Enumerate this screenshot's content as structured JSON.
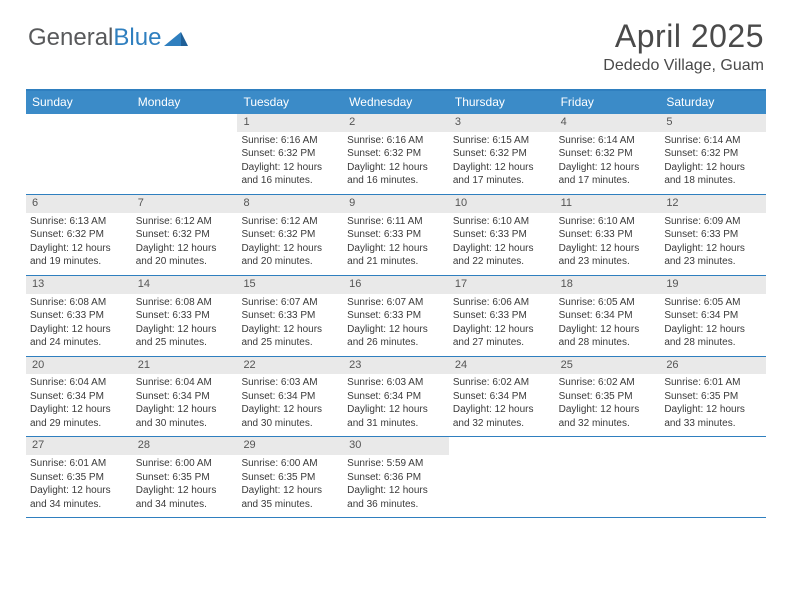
{
  "brand": {
    "word1": "General",
    "word2": "Blue"
  },
  "header": {
    "title": "April 2025",
    "location": "Dededo Village, Guam"
  },
  "colors": {
    "header_bar": "#3b8bc8",
    "header_rule": "#2f7fbf",
    "week_divider": "#2f7fbf",
    "daynum_bg": "#e9e9e9",
    "text": "#3a3a3a",
    "brand_grey": "#58595b",
    "brand_blue": "#2f7fbf"
  },
  "day_headers": [
    "Sunday",
    "Monday",
    "Tuesday",
    "Wednesday",
    "Thursday",
    "Friday",
    "Saturday"
  ],
  "weeks": [
    [
      null,
      null,
      {
        "n": "1",
        "sr": "6:16 AM",
        "ss": "6:32 PM",
        "dl": "12 hours and 16 minutes."
      },
      {
        "n": "2",
        "sr": "6:16 AM",
        "ss": "6:32 PM",
        "dl": "12 hours and 16 minutes."
      },
      {
        "n": "3",
        "sr": "6:15 AM",
        "ss": "6:32 PM",
        "dl": "12 hours and 17 minutes."
      },
      {
        "n": "4",
        "sr": "6:14 AM",
        "ss": "6:32 PM",
        "dl": "12 hours and 17 minutes."
      },
      {
        "n": "5",
        "sr": "6:14 AM",
        "ss": "6:32 PM",
        "dl": "12 hours and 18 minutes."
      }
    ],
    [
      {
        "n": "6",
        "sr": "6:13 AM",
        "ss": "6:32 PM",
        "dl": "12 hours and 19 minutes."
      },
      {
        "n": "7",
        "sr": "6:12 AM",
        "ss": "6:32 PM",
        "dl": "12 hours and 20 minutes."
      },
      {
        "n": "8",
        "sr": "6:12 AM",
        "ss": "6:32 PM",
        "dl": "12 hours and 20 minutes."
      },
      {
        "n": "9",
        "sr": "6:11 AM",
        "ss": "6:33 PM",
        "dl": "12 hours and 21 minutes."
      },
      {
        "n": "10",
        "sr": "6:10 AM",
        "ss": "6:33 PM",
        "dl": "12 hours and 22 minutes."
      },
      {
        "n": "11",
        "sr": "6:10 AM",
        "ss": "6:33 PM",
        "dl": "12 hours and 23 minutes."
      },
      {
        "n": "12",
        "sr": "6:09 AM",
        "ss": "6:33 PM",
        "dl": "12 hours and 23 minutes."
      }
    ],
    [
      {
        "n": "13",
        "sr": "6:08 AM",
        "ss": "6:33 PM",
        "dl": "12 hours and 24 minutes."
      },
      {
        "n": "14",
        "sr": "6:08 AM",
        "ss": "6:33 PM",
        "dl": "12 hours and 25 minutes."
      },
      {
        "n": "15",
        "sr": "6:07 AM",
        "ss": "6:33 PM",
        "dl": "12 hours and 25 minutes."
      },
      {
        "n": "16",
        "sr": "6:07 AM",
        "ss": "6:33 PM",
        "dl": "12 hours and 26 minutes."
      },
      {
        "n": "17",
        "sr": "6:06 AM",
        "ss": "6:33 PM",
        "dl": "12 hours and 27 minutes."
      },
      {
        "n": "18",
        "sr": "6:05 AM",
        "ss": "6:34 PM",
        "dl": "12 hours and 28 minutes."
      },
      {
        "n": "19",
        "sr": "6:05 AM",
        "ss": "6:34 PM",
        "dl": "12 hours and 28 minutes."
      }
    ],
    [
      {
        "n": "20",
        "sr": "6:04 AM",
        "ss": "6:34 PM",
        "dl": "12 hours and 29 minutes."
      },
      {
        "n": "21",
        "sr": "6:04 AM",
        "ss": "6:34 PM",
        "dl": "12 hours and 30 minutes."
      },
      {
        "n": "22",
        "sr": "6:03 AM",
        "ss": "6:34 PM",
        "dl": "12 hours and 30 minutes."
      },
      {
        "n": "23",
        "sr": "6:03 AM",
        "ss": "6:34 PM",
        "dl": "12 hours and 31 minutes."
      },
      {
        "n": "24",
        "sr": "6:02 AM",
        "ss": "6:34 PM",
        "dl": "12 hours and 32 minutes."
      },
      {
        "n": "25",
        "sr": "6:02 AM",
        "ss": "6:35 PM",
        "dl": "12 hours and 32 minutes."
      },
      {
        "n": "26",
        "sr": "6:01 AM",
        "ss": "6:35 PM",
        "dl": "12 hours and 33 minutes."
      }
    ],
    [
      {
        "n": "27",
        "sr": "6:01 AM",
        "ss": "6:35 PM",
        "dl": "12 hours and 34 minutes."
      },
      {
        "n": "28",
        "sr": "6:00 AM",
        "ss": "6:35 PM",
        "dl": "12 hours and 34 minutes."
      },
      {
        "n": "29",
        "sr": "6:00 AM",
        "ss": "6:35 PM",
        "dl": "12 hours and 35 minutes."
      },
      {
        "n": "30",
        "sr": "5:59 AM",
        "ss": "6:36 PM",
        "dl": "12 hours and 36 minutes."
      },
      null,
      null,
      null
    ]
  ],
  "labels": {
    "sunrise": "Sunrise:",
    "sunset": "Sunset:",
    "daylight": "Daylight:"
  }
}
